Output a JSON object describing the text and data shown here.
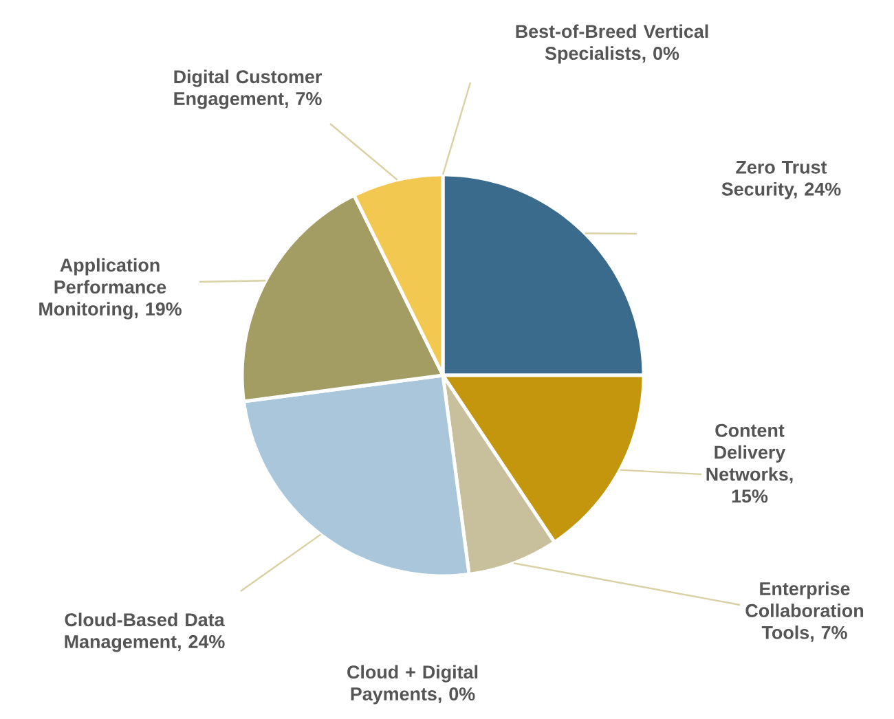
{
  "chart_data": {
    "type": "pie",
    "categories": [
      "Zero Trust Security, 24%",
      "Content Delivery Networks, 15%",
      "Enterprise Collaboration Tools, 7%",
      "Cloud + Digital Payments, 0%",
      "Cloud-Based Data Management, 24%",
      "Application Performance Monitoring, 19%",
      "Digital Customer Engagement, 7%",
      "Best-of-Breed Vertical Specialists, 0%"
    ],
    "values": [
      24,
      15,
      7,
      0,
      24,
      19,
      7,
      0
    ],
    "colors": [
      "#3b6b8c",
      "#c4960d",
      "#c8c09c",
      "#8a8a8a",
      "#a9c6da",
      "#a39c63",
      "#f3c851",
      "#6b6b6b"
    ]
  }
}
